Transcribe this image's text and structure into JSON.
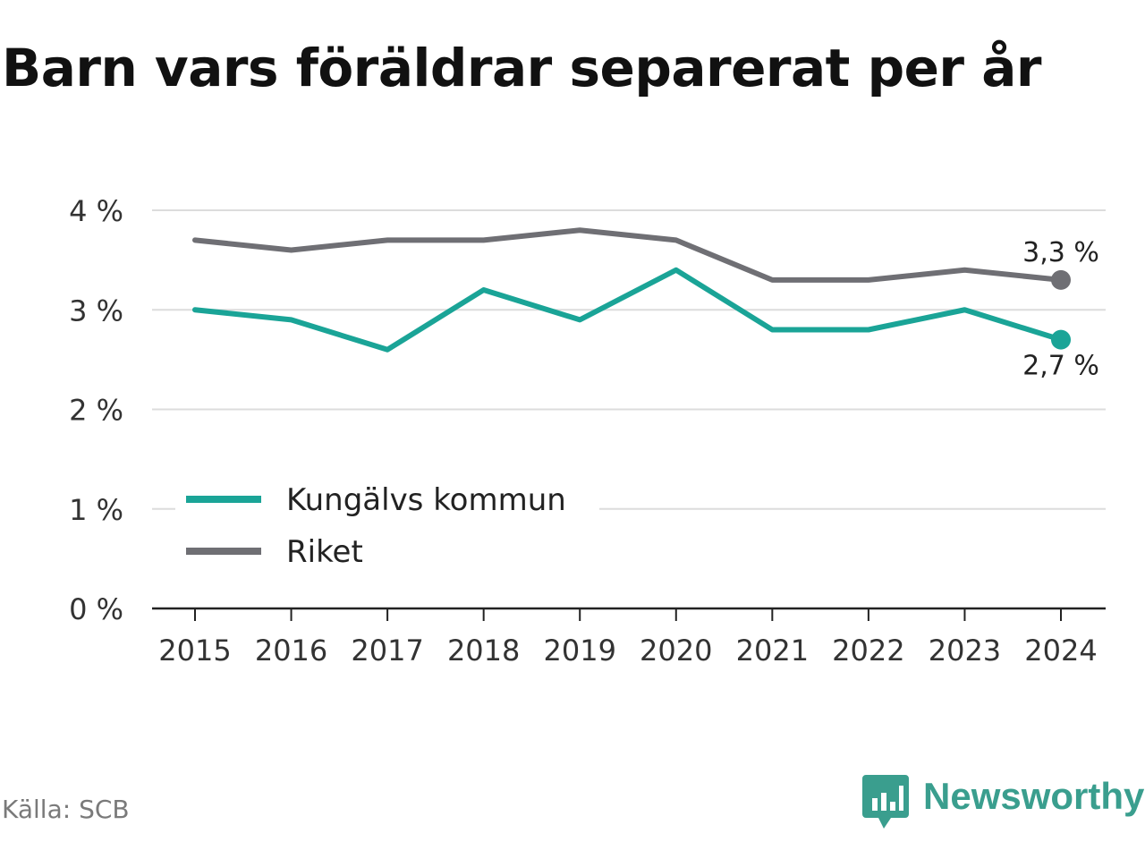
{
  "chart_data": {
    "type": "line",
    "title": "Barn vars föräldrar separerat per år",
    "x": [
      "2015",
      "2016",
      "2017",
      "2018",
      "2019",
      "2020",
      "2021",
      "2022",
      "2023",
      "2024"
    ],
    "series": [
      {
        "name": "Kungälvs kommun",
        "color": "#1aa497",
        "values": [
          3.0,
          2.9,
          2.6,
          3.2,
          2.9,
          3.4,
          2.8,
          2.8,
          3.0,
          2.7
        ],
        "end_label": "2,7 %"
      },
      {
        "name": "Riket",
        "color": "#6f6f74",
        "values": [
          3.7,
          3.6,
          3.7,
          3.7,
          3.8,
          3.7,
          3.3,
          3.3,
          3.4,
          3.3
        ],
        "end_label": "3,3 %"
      }
    ],
    "ylim": [
      0,
      4
    ],
    "y_ticks": [
      0,
      1,
      2,
      3,
      4
    ],
    "y_tick_labels": [
      "0 %",
      "1 %",
      "2 %",
      "3 %",
      "4 %"
    ],
    "grid": true,
    "legend_position": "bottom-left"
  },
  "source": "Källa: SCB",
  "brand": {
    "name": "Newsworthy",
    "color": "#3a9e8e",
    "icon": "chart-bubble-icon"
  }
}
